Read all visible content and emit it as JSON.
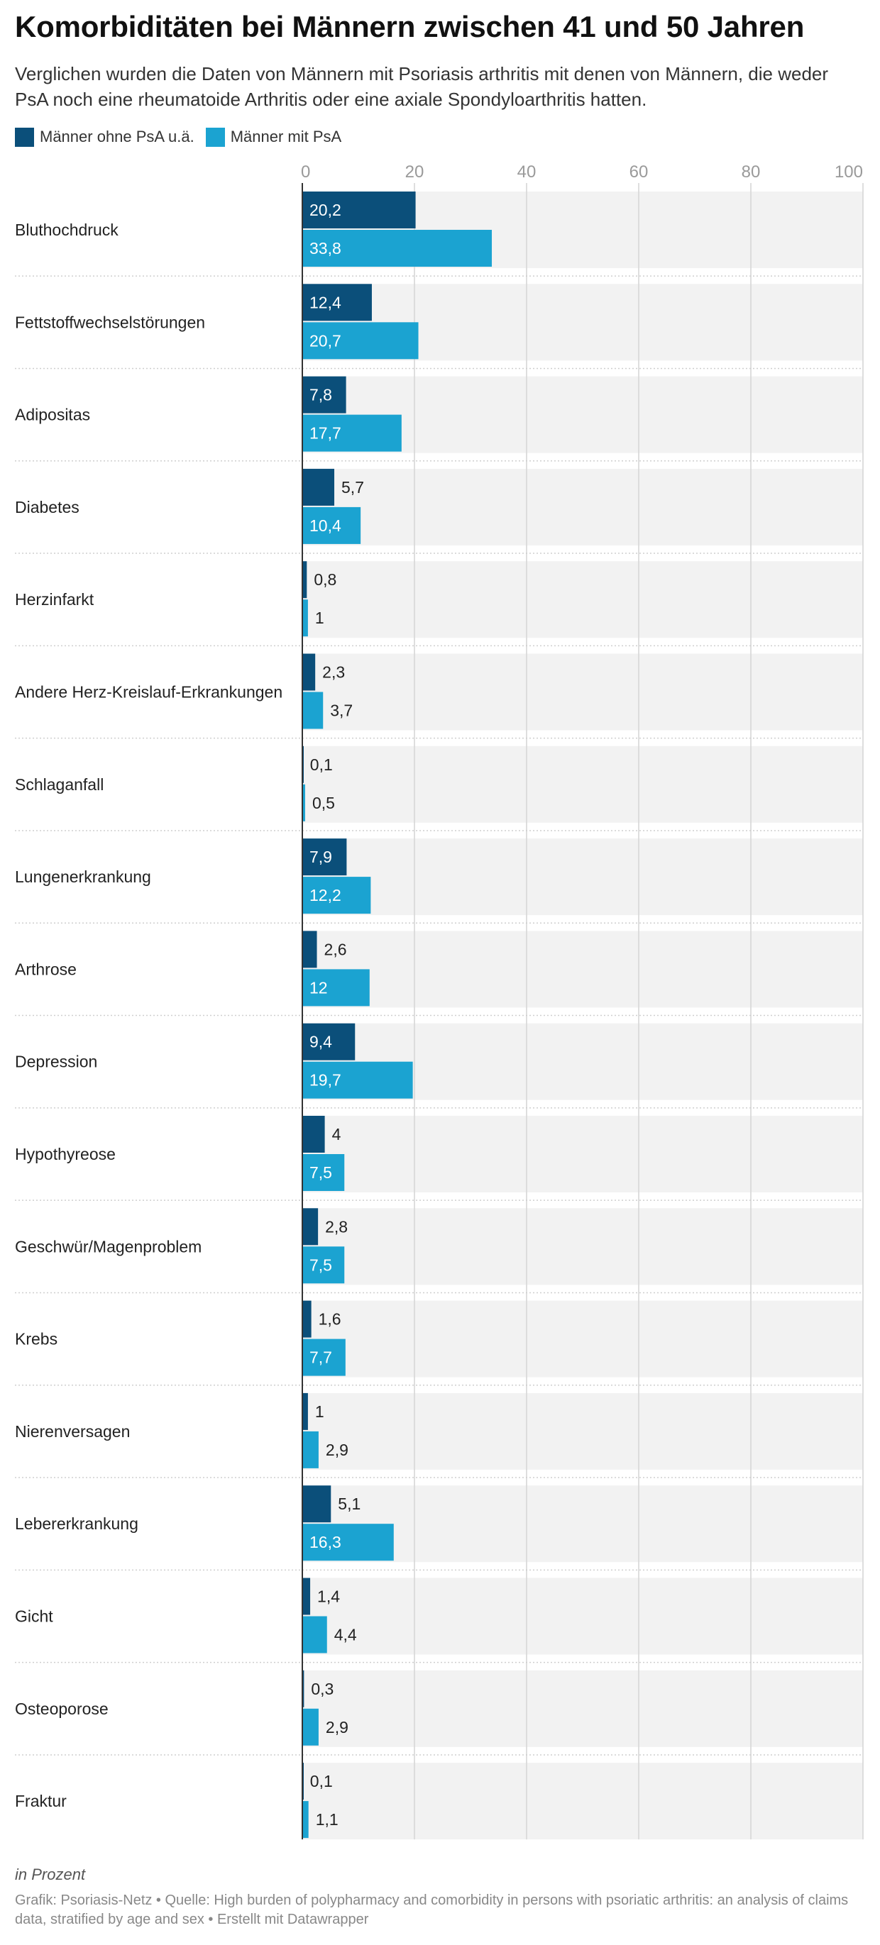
{
  "title": "Komorbiditäten bei Männern zwischen 41 und 50 Jahren",
  "subtitle": "Verglichen wurden die Daten von Männern mit Psoriasis arthritis mit denen von Männern, die weder PsA noch eine rheumatoide Arthritis oder eine axiale Spondyloarthritis hatten.",
  "note": "in Prozent",
  "source": {
    "credit": "Grafik: Psoriasis-Netz",
    "sep1": " • ",
    "quelle": "Quelle: High burden of polypharmacy and comorbidity in persons with psoriatic arthritis: an analysis of claims data, stratified by age and sex",
    "sep2": " • ",
    "tool": "Erstellt mit Datawrapper"
  },
  "colors": {
    "series1": "#0b4f7a",
    "series2": "#1ba3d1",
    "row_bg": "#f2f2f2",
    "grid": "#d4d4d4"
  },
  "chart_data": {
    "type": "bar",
    "orientation": "horizontal",
    "xlim": [
      0,
      100
    ],
    "ticks": [
      "0",
      "20",
      "40",
      "60",
      "80",
      "100"
    ],
    "tick_values": [
      0,
      20,
      40,
      60,
      80,
      100
    ],
    "grid": true,
    "legend_position": "top-left",
    "categories": [
      "Bluthochdruck",
      "Fettstoffwechselstörungen",
      "Adipositas",
      "Diabetes",
      "Herzinfarkt",
      "Andere Herz-Kreislauf-Erkrankungen",
      "Schlaganfall",
      "Lungenerkrankung",
      "Arthrose",
      "Depression",
      "Hypothyreose",
      "Geschwür/Magenproblem",
      "Krebs",
      "Nierenversagen",
      "Lebererkrankung",
      "Gicht",
      "Osteoporose",
      "Fraktur"
    ],
    "series": [
      {
        "name": "Männer ohne PsA u.ä.",
        "values": [
          20.2,
          12.4,
          7.8,
          5.7,
          0.8,
          2.3,
          0.1,
          7.9,
          2.6,
          9.4,
          4,
          2.8,
          1.6,
          1,
          5.1,
          1.4,
          0.3,
          0.1
        ],
        "labels": [
          "20,2",
          "12,4",
          "7,8",
          "5,7",
          "0,8",
          "2,3",
          "0,1",
          "7,9",
          "2,6",
          "9,4",
          "4",
          "2,8",
          "1,6",
          "1",
          "5,1",
          "1,4",
          "0,3",
          "0,1"
        ]
      },
      {
        "name": "Männer mit PsA",
        "values": [
          33.8,
          20.7,
          17.7,
          10.4,
          1,
          3.7,
          0.5,
          12.2,
          12,
          19.7,
          7.5,
          7.5,
          7.7,
          2.9,
          16.3,
          4.4,
          2.9,
          1.1
        ],
        "labels": [
          "33,8",
          "20,7",
          "17,7",
          "10,4",
          "1",
          "3,7",
          "0,5",
          "12,2",
          "12",
          "19,7",
          "7,5",
          "7,5",
          "7,7",
          "2,9",
          "16,3",
          "4,4",
          "2,9",
          "1,1"
        ]
      }
    ]
  }
}
